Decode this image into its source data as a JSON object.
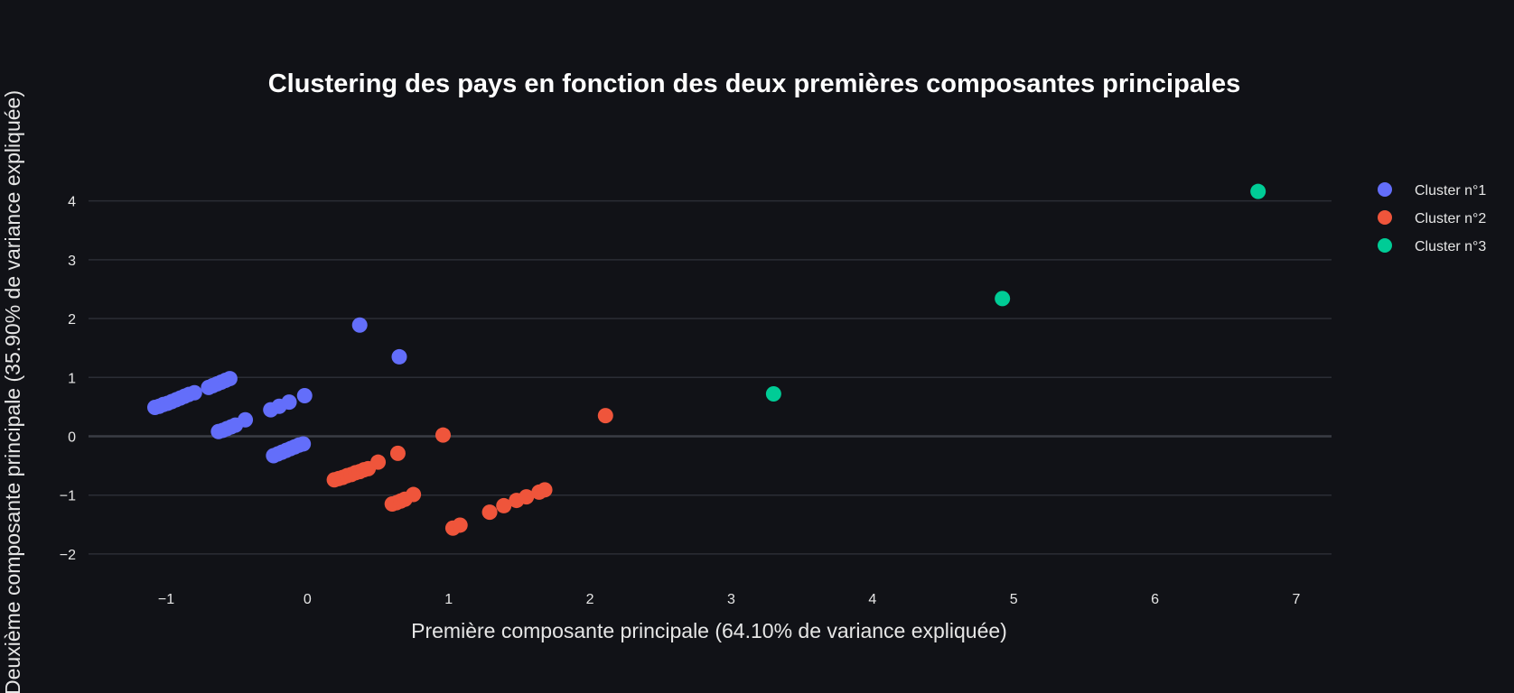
{
  "chart_data": {
    "type": "scatter",
    "title": "Clustering des pays en fonction des deux premières composantes principales",
    "xlabel": "Première composante principale (64.10% de variance expliquée)",
    "ylabel": "Deuxième composante principale (35.90% de variance expliquée)",
    "xlim": [
      -1.55,
      7.25
    ],
    "ylim": [
      -2.4,
      4.5
    ],
    "x_ticks": [
      -1,
      0,
      1,
      2,
      3,
      4,
      5,
      6,
      7
    ],
    "x_tick_labels": [
      "−1",
      "0",
      "1",
      "2",
      "3",
      "4",
      "5",
      "6",
      "7"
    ],
    "y_ticks": [
      -2,
      -1,
      0,
      1,
      2,
      3,
      4
    ],
    "y_tick_labels": [
      "−2",
      "−1",
      "0",
      "1",
      "2",
      "3",
      "4"
    ],
    "grid": true,
    "legend_position": "top-right",
    "series": [
      {
        "name": "Cluster n°1",
        "color": "#636efa",
        "points": [
          [
            -1.08,
            0.49
          ],
          [
            -1.05,
            0.51
          ],
          [
            -1.02,
            0.54
          ],
          [
            -0.99,
            0.56
          ],
          [
            -0.96,
            0.59
          ],
          [
            -0.93,
            0.62
          ],
          [
            -0.9,
            0.65
          ],
          [
            -0.87,
            0.68
          ],
          [
            -0.84,
            0.71
          ],
          [
            -0.8,
            0.74
          ],
          [
            -0.7,
            0.83
          ],
          [
            -0.67,
            0.86
          ],
          [
            -0.64,
            0.89
          ],
          [
            -0.61,
            0.92
          ],
          [
            -0.58,
            0.95
          ],
          [
            -0.55,
            0.98
          ],
          [
            -0.63,
            0.08
          ],
          [
            -0.6,
            0.1
          ],
          [
            -0.57,
            0.13
          ],
          [
            -0.54,
            0.16
          ],
          [
            -0.51,
            0.19
          ],
          [
            -0.44,
            0.28
          ],
          [
            -0.26,
            0.45
          ],
          [
            -0.2,
            0.51
          ],
          [
            -0.13,
            0.58
          ],
          [
            -0.02,
            0.69
          ],
          [
            -0.24,
            -0.33
          ],
          [
            -0.21,
            -0.3
          ],
          [
            -0.18,
            -0.27
          ],
          [
            -0.15,
            -0.24
          ],
          [
            -0.12,
            -0.21
          ],
          [
            -0.09,
            -0.18
          ],
          [
            -0.06,
            -0.15
          ],
          [
            -0.03,
            -0.13
          ],
          [
            0.37,
            1.89
          ],
          [
            0.65,
            1.35
          ]
        ]
      },
      {
        "name": "Cluster n°2",
        "color": "#ef553b",
        "points": [
          [
            0.19,
            -0.74
          ],
          [
            0.22,
            -0.72
          ],
          [
            0.25,
            -0.7
          ],
          [
            0.28,
            -0.67
          ],
          [
            0.31,
            -0.65
          ],
          [
            0.34,
            -0.62
          ],
          [
            0.37,
            -0.6
          ],
          [
            0.4,
            -0.57
          ],
          [
            0.43,
            -0.55
          ],
          [
            0.5,
            -0.44
          ],
          [
            0.64,
            -0.29
          ],
          [
            0.6,
            -1.15
          ],
          [
            0.63,
            -1.13
          ],
          [
            0.66,
            -1.1
          ],
          [
            0.69,
            -1.07
          ],
          [
            0.75,
            -0.99
          ],
          [
            0.96,
            0.02
          ],
          [
            1.03,
            -1.56
          ],
          [
            1.08,
            -1.51
          ],
          [
            1.29,
            -1.29
          ],
          [
            1.39,
            -1.18
          ],
          [
            1.48,
            -1.09
          ],
          [
            1.55,
            -1.03
          ],
          [
            1.64,
            -0.95
          ],
          [
            1.68,
            -0.91
          ],
          [
            2.11,
            0.35
          ]
        ]
      },
      {
        "name": "Cluster n°3",
        "color": "#00cc96",
        "points": [
          [
            3.3,
            0.72
          ],
          [
            4.92,
            2.34
          ],
          [
            6.73,
            4.16
          ]
        ]
      }
    ]
  }
}
